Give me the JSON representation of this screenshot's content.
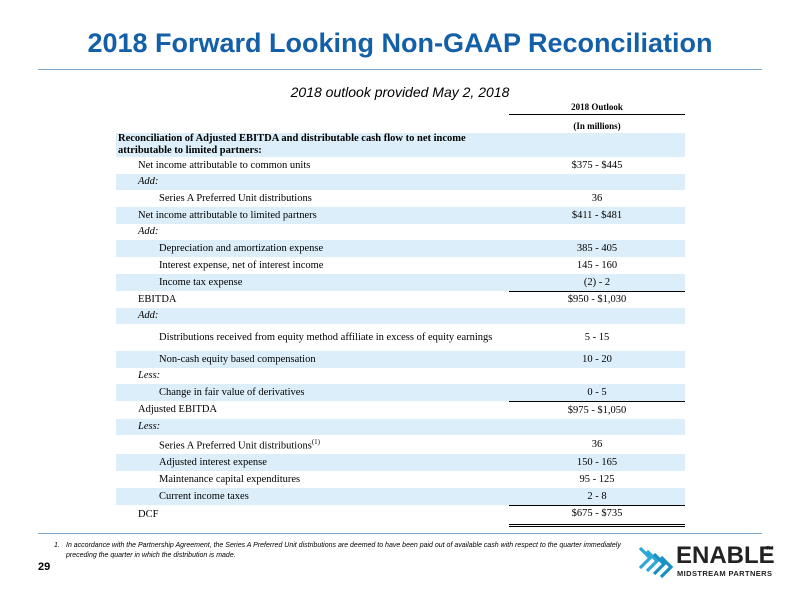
{
  "title": "2018 Forward Looking Non-GAAP Reconciliation",
  "subtitle": "2018 outlook provided May 2, 2018",
  "column": {
    "header": "2018 Outlook",
    "units": "(In millions)"
  },
  "rows": [
    {
      "label": "Reconciliation of Adjusted EBITDA and distributable cash flow to net income attributable to limited partners:",
      "value": ""
    },
    {
      "label": "Net income attributable to common units",
      "value": "$375 - $445"
    },
    {
      "label": "Add:",
      "value": ""
    },
    {
      "label": "Series A Preferred Unit distributions",
      "value": "36"
    },
    {
      "label": "Net income attributable to limited partners",
      "value": "$411 - $481"
    },
    {
      "label": "Add:",
      "value": ""
    },
    {
      "label": "Depreciation and amortization expense",
      "value": "385 - 405"
    },
    {
      "label": "Interest expense, net of interest income",
      "value": "145 - 160"
    },
    {
      "label": "Income tax expense",
      "value": "(2) - 2"
    },
    {
      "label": "EBITDA",
      "value": "$950 - $1,030"
    },
    {
      "label": "Add:",
      "value": ""
    },
    {
      "label": "Distributions received from equity method affiliate in excess of equity earnings",
      "value": "5 - 15"
    },
    {
      "label": "Non-cash equity based compensation",
      "value": "10 - 20"
    },
    {
      "label": "Less:",
      "value": ""
    },
    {
      "label": "Change in fair value of derivatives",
      "value": "0 - 5"
    },
    {
      "label": "Adjusted EBITDA",
      "value": "$975 - $1,050"
    },
    {
      "label": "Less:",
      "value": ""
    },
    {
      "label": "Series A Preferred Unit distributions",
      "sup": "(1)",
      "value": "36"
    },
    {
      "label": "Adjusted interest expense",
      "value": "150 - 165"
    },
    {
      "label": "Maintenance capital expenditures",
      "value": "95 - 125"
    },
    {
      "label": "Current income taxes",
      "value": "2 - 8"
    },
    {
      "label": "DCF",
      "value": "$675 - $735"
    }
  ],
  "footnote": {
    "number": "1.",
    "text": "In accordance with the Partnership Agreement, the Series A Preferred Unit distributions are deemed to have been paid out of available cash with respect to the quarter immediately preceding the quarter in which the distribution is made."
  },
  "page_number": "29",
  "logo": {
    "word": "ENABLE",
    "sub": "MIDSTREAM PARTNERS",
    "tm": "TM",
    "color": "#2aa8d8"
  }
}
